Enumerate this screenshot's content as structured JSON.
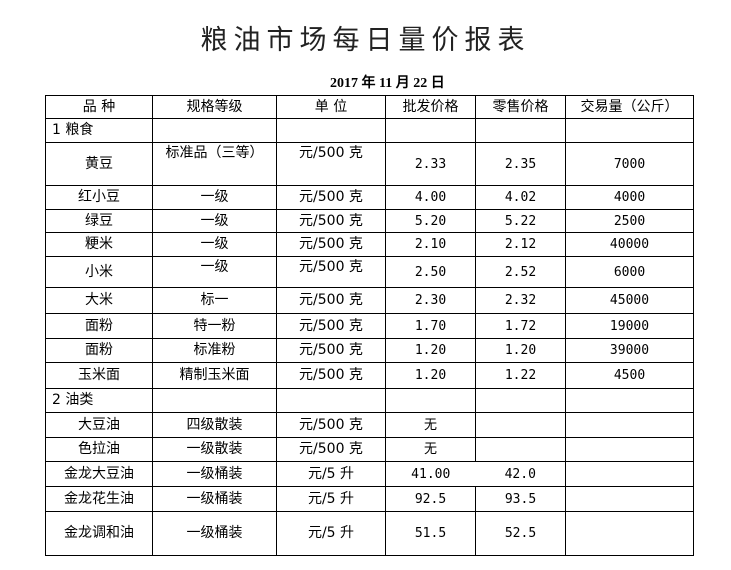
{
  "title": "粮油市场每日量价报表",
  "date": "2017 年 11 月 22 日",
  "headers": [
    "品 种",
    "规格等级",
    "单 位",
    "批发价格",
    "零售价格",
    "交易量（公斤）"
  ],
  "rows": [
    {
      "section": "1 粮食"
    },
    {
      "name": "黄豆",
      "grade": "标准品（三等）",
      "unit": "元/500 克",
      "wholesale": "2.33",
      "retail": "2.35",
      "volume": "7000"
    },
    {
      "name": "红小豆",
      "grade": "一级",
      "unit": "元/500 克",
      "wholesale": "4.00",
      "retail": "4.02",
      "volume": "4000"
    },
    {
      "name": "绿豆",
      "grade": "一级",
      "unit": "元/500 克",
      "wholesale": "5.20",
      "retail": "5.22",
      "volume": "2500"
    },
    {
      "name": "粳米",
      "grade": "一级",
      "unit": "元/500 克",
      "wholesale": "2.10",
      "retail": "2.12",
      "volume": "40000"
    },
    {
      "name": "小米",
      "grade": "一级",
      "unit": "元/500 克",
      "wholesale": "2.50",
      "retail": "2.52",
      "volume": "6000"
    },
    {
      "name": "大米",
      "grade": "标一",
      "unit": "元/500 克",
      "wholesale": "2.30",
      "retail": "2.32",
      "volume": "45000"
    },
    {
      "name": "面粉",
      "grade": "特一粉",
      "unit": "元/500 克",
      "wholesale": "1.70",
      "retail": "1.72",
      "volume": "19000"
    },
    {
      "name": "面粉",
      "grade": "标准粉",
      "unit": "元/500 克",
      "wholesale": "1.20",
      "retail": "1.20",
      "volume": "39000"
    },
    {
      "name": "玉米面",
      "grade": "精制玉米面",
      "unit": "元/500 克",
      "wholesale": "1.20",
      "retail": "1.22",
      "volume": "4500"
    },
    {
      "section": "2 油类"
    },
    {
      "name": "大豆油",
      "grade": "四级散装",
      "unit": "元/500 克",
      "wholesale": "无",
      "retail": "",
      "volume": ""
    },
    {
      "name": "色拉油",
      "grade": "一级散装",
      "unit": "元/500 克",
      "wholesale": "无",
      "retail": "",
      "volume": ""
    },
    {
      "name": "金龙大豆油",
      "grade": "一级桶装",
      "unit": "元/5 升",
      "wholesale": "41.00",
      "retail": "42.0",
      "volume": ""
    },
    {
      "name": "金龙花生油",
      "grade": "一级桶装",
      "unit": "元/5 升",
      "wholesale": "92.5",
      "retail": "93.5",
      "volume": ""
    },
    {
      "name": "金龙调和油",
      "grade": "一级桶装",
      "unit": "元/5 升",
      "wholesale": "51.5",
      "retail": "52.5",
      "volume": ""
    }
  ]
}
